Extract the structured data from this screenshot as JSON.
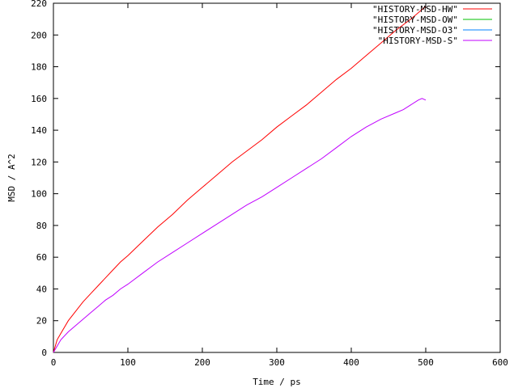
{
  "chart_data": {
    "type": "line",
    "title": "",
    "xlabel": "Time / ps",
    "ylabel": "MSD / A^2",
    "xlim": [
      0,
      600
    ],
    "ylim": [
      0,
      220
    ],
    "xticks": [
      0,
      100,
      200,
      300,
      400,
      500,
      600
    ],
    "yticks": [
      0,
      20,
      40,
      60,
      80,
      100,
      120,
      140,
      160,
      180,
      200,
      220
    ],
    "grid": false,
    "legend": "top-right",
    "series": [
      {
        "name": "\"HISTORY-MSD-HW\"",
        "color": "#ff0000",
        "x": [
          0,
          5,
          10,
          20,
          30,
          40,
          50,
          60,
          70,
          80,
          90,
          100,
          120,
          140,
          160,
          180,
          200,
          220,
          240,
          260,
          280,
          300,
          320,
          340,
          360,
          380,
          400,
          420,
          440,
          460,
          480,
          500
        ],
        "y": [
          0,
          8,
          12,
          20,
          26,
          32,
          37,
          42,
          47,
          52,
          57,
          61,
          70,
          79,
          87,
          96,
          104,
          112,
          120,
          127,
          134,
          142,
          149,
          156,
          164,
          172,
          179,
          187,
          195,
          203,
          210,
          218
        ]
      },
      {
        "name": "\"HISTORY-MSD-OW\"",
        "color": "#00c000",
        "x": [],
        "y": []
      },
      {
        "name": "\"HISTORY-MSD-O3\"",
        "color": "#0080ff",
        "x": [],
        "y": []
      },
      {
        "name": "\"HISTORY-MSD-S\"",
        "color": "#c000ff",
        "x": [
          0,
          5,
          10,
          20,
          30,
          40,
          50,
          60,
          70,
          80,
          90,
          100,
          120,
          140,
          160,
          180,
          200,
          220,
          240,
          260,
          280,
          300,
          320,
          340,
          360,
          380,
          400,
          420,
          440,
          460,
          470,
          480,
          490,
          495,
          500
        ],
        "y": [
          0,
          4,
          8,
          13,
          17,
          21,
          25,
          29,
          33,
          36,
          40,
          43,
          50,
          57,
          63,
          69,
          75,
          81,
          87,
          93,
          98,
          104,
          110,
          116,
          122,
          129,
          136,
          142,
          147,
          151,
          153,
          156,
          159,
          160,
          159
        ]
      }
    ]
  }
}
